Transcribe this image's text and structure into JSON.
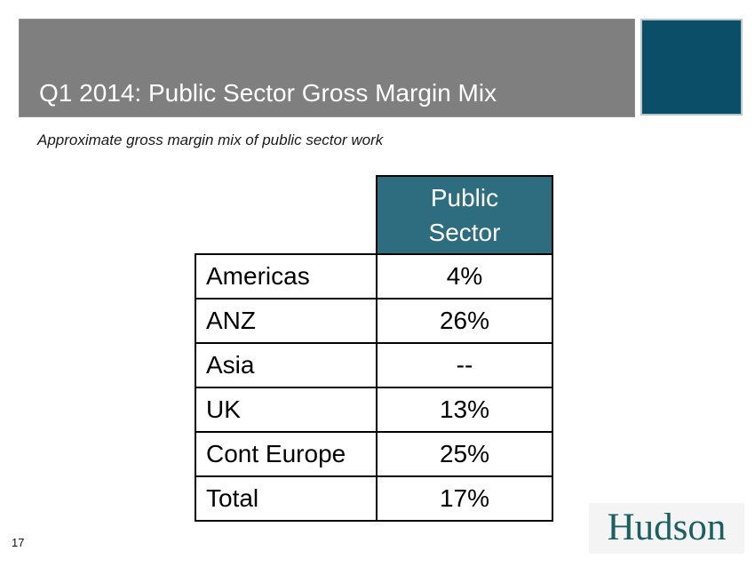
{
  "slide": {
    "title": "Q1 2014: Public Sector Gross Margin Mix",
    "subtitle": "Approximate gross margin mix of public sector work",
    "page_number": "17"
  },
  "table": {
    "header": "Public Sector",
    "rows": [
      {
        "label": "Americas",
        "value": "4%"
      },
      {
        "label": "ANZ",
        "value": "26%"
      },
      {
        "label": "Asia",
        "value": "--"
      },
      {
        "label": "UK",
        "value": "13%"
      },
      {
        "label": "Cont Europe",
        "value": "25%"
      },
      {
        "label": "Total",
        "value": "17%"
      }
    ]
  },
  "logo": {
    "text": "Hudson"
  },
  "colors": {
    "header_bar": "#7F7F7F",
    "accent_square": "#0B4E68",
    "table_header_bg": "#2E6C80",
    "logo_text": "#1C5F63",
    "logo_bg": "#F4F4F4"
  },
  "chart_data": {
    "type": "table",
    "title": "Q1 2014: Public Sector Gross Margin Mix",
    "subtitle": "Approximate gross margin mix of public sector work",
    "columns": [
      "",
      "Public Sector"
    ],
    "rows": [
      [
        "Americas",
        "4%"
      ],
      [
        "ANZ",
        "26%"
      ],
      [
        "Asia",
        "--"
      ],
      [
        "UK",
        "13%"
      ],
      [
        "Cont Europe",
        "25%"
      ],
      [
        "Total",
        "17%"
      ]
    ]
  }
}
